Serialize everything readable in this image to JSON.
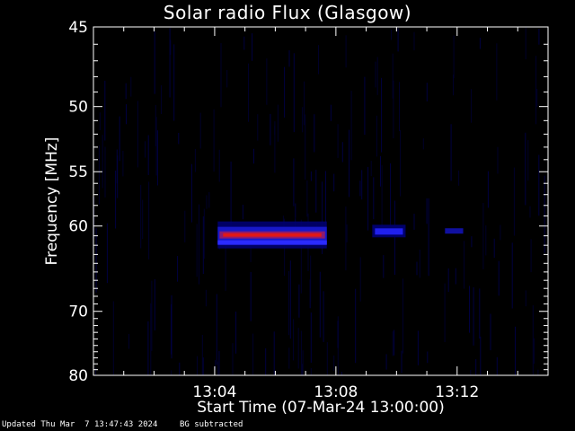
{
  "chart_data": {
    "type": "heatmap",
    "title": "Solar radio Flux (Glasgow)",
    "xlabel": "Start Time (07-Mar-24 13:00:00)",
    "ylabel": "Frequency [MHz]",
    "x_ticks": [
      "13:04",
      "13:08",
      "13:12"
    ],
    "y_ticks": [
      45,
      50,
      55,
      60,
      70,
      80
    ],
    "xlim_minutes": [
      0,
      15
    ],
    "ylim_mhz": [
      45,
      80
    ],
    "y_scale": "reciprocal",
    "grid": false,
    "colors": {
      "background": "#000000",
      "axes": "#ffffff",
      "low": "#000060",
      "mid": "#2020ff",
      "high": "#ff2020"
    },
    "features": [
      {
        "kind": "burst",
        "start_min": 4.1,
        "end_min": 7.7,
        "freq_mhz": 61.0,
        "intensity": "high"
      },
      {
        "kind": "burst",
        "start_min": 9.2,
        "end_min": 10.3,
        "freq_mhz": 60.6,
        "intensity": "medium"
      },
      {
        "kind": "burst",
        "start_min": 11.6,
        "end_min": 12.2,
        "freq_mhz": 60.5,
        "intensity": "low"
      }
    ]
  },
  "footer": {
    "updated": "Updated Thu Mar  7 13:47:43 2024",
    "bg_note": "BG subtracted"
  }
}
